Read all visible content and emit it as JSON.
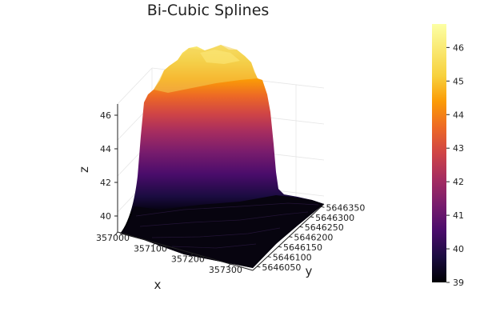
{
  "chart_data": {
    "type": "surface",
    "title": "Bi-Cubic Splines",
    "xlabel": "x",
    "ylabel": "y",
    "zlabel": "z",
    "x_ticks": [
      "357000",
      "357100",
      "357200",
      "357300"
    ],
    "y_ticks": [
      "5646050",
      "5646100",
      "5646150",
      "5646200",
      "5646250",
      "5646300",
      "5646350"
    ],
    "z_ticks": [
      "40",
      "42",
      "44",
      "46"
    ],
    "colorbar_ticks": [
      "39",
      "40",
      "41",
      "42",
      "43",
      "44",
      "45",
      "46"
    ],
    "colorbar_range": [
      39,
      46.7
    ],
    "colormap": "inferno",
    "z_range": [
      39.2,
      46.7
    ],
    "surface_profile": {
      "plateau_z": 45.0,
      "peak_z": 46.4,
      "base_z": 39.3
    },
    "grid": true,
    "legend": "colorbar-right"
  }
}
